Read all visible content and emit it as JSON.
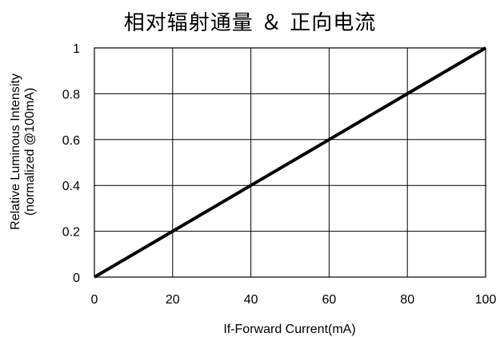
{
  "chart_data": {
    "type": "line",
    "title": "相对辐射通量 ＆ 正向电流",
    "xlabel": "If-Forward Current(mA)",
    "ylabel_line1": "Relative Luminous Intensity",
    "ylabel_line2": "(normalized @100mA)",
    "xlim": [
      0,
      100
    ],
    "ylim": [
      0,
      1
    ],
    "xticks": [
      0,
      20,
      40,
      60,
      80,
      100
    ],
    "xtick_labels": [
      "0",
      "20",
      "40",
      "60",
      "80",
      "100"
    ],
    "yticks": [
      0,
      0.2,
      0.4,
      0.6,
      0.8,
      1
    ],
    "ytick_labels": [
      "0",
      "0.2",
      "0.4",
      "0.6",
      "0.8",
      "1"
    ],
    "grid": true,
    "series": [
      {
        "x": [
          0,
          20,
          40,
          60,
          80,
          100
        ],
        "y": [
          0,
          0.2,
          0.4,
          0.6,
          0.8,
          1.0
        ],
        "color": "#000000"
      }
    ]
  }
}
